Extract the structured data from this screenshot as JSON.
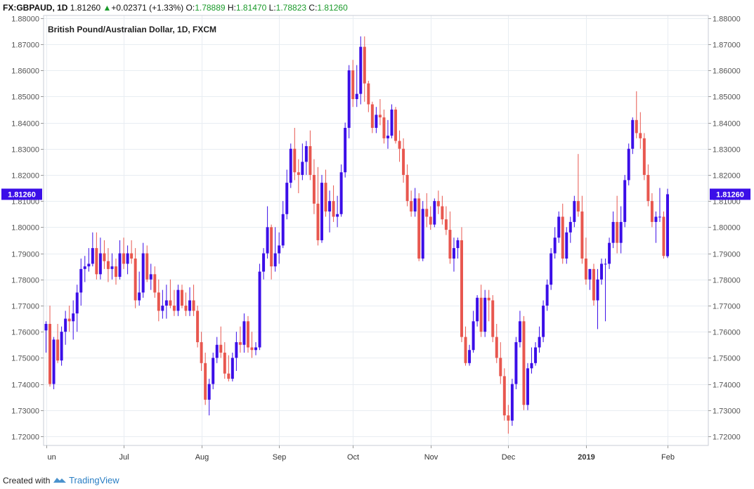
{
  "header": {
    "symbol": "FX:GBPAUD, 1D",
    "last": "1.81260",
    "arrow": "▲",
    "change": "+0.02371 (+1.33%)",
    "o_label": "O:",
    "o_value": "1.78889",
    "h_label": "H:",
    "h_value": "1.81470",
    "l_label": "L:",
    "l_value": "1.78823",
    "c_label": "C:",
    "c_value": "1.81260"
  },
  "footer": {
    "created_with": "Created with",
    "brand": "TradingView"
  },
  "colors": {
    "up": "#3b0ee8",
    "down": "#e8574f",
    "grid": "#e8edf2",
    "axis": "#555555",
    "price_badge": "#3b0ee8",
    "header_green": "#1a9a2a"
  },
  "chart_data": {
    "type": "candlestick",
    "title": "British Pound/Australian Dollar, 1D, FXCM",
    "ylim": [
      1.7165,
      1.881
    ],
    "y_ticks": [
      "1.72000",
      "1.73000",
      "1.74000",
      "1.75000",
      "1.76000",
      "1.77000",
      "1.78000",
      "1.79000",
      "1.80000",
      "1.81000",
      "1.82000",
      "1.83000",
      "1.84000",
      "1.85000",
      "1.86000",
      "1.87000",
      "1.88000"
    ],
    "last_price": "1.81260",
    "grid": true,
    "x_ticks": [
      {
        "label": "un",
        "index": 0,
        "bold": false
      },
      {
        "label": "Jul",
        "index": 20,
        "bold": false
      },
      {
        "label": "Aug",
        "index": 40,
        "bold": false
      },
      {
        "label": "Sep",
        "index": 60,
        "bold": false
      },
      {
        "label": "Oct",
        "index": 79,
        "bold": false
      },
      {
        "label": "Nov",
        "index": 99,
        "bold": false
      },
      {
        "label": "Dec",
        "index": 119,
        "bold": false
      },
      {
        "label": "2019",
        "index": 139,
        "bold": true
      },
      {
        "label": "Feb",
        "index": 160,
        "bold": false
      }
    ],
    "ohlc": [
      [
        1.7605,
        1.764,
        1.752,
        1.763
      ],
      [
        1.763,
        1.77,
        1.739,
        1.74
      ],
      [
        1.74,
        1.758,
        1.738,
        1.757
      ],
      [
        1.757,
        1.763,
        1.748,
        1.749
      ],
      [
        1.749,
        1.762,
        1.747,
        1.76
      ],
      [
        1.76,
        1.768,
        1.755,
        1.765
      ],
      [
        1.765,
        1.77,
        1.76,
        1.764
      ],
      [
        1.764,
        1.772,
        1.757,
        1.767
      ],
      [
        1.767,
        1.778,
        1.76,
        1.775
      ],
      [
        1.775,
        1.788,
        1.77,
        1.784
      ],
      [
        1.784,
        1.789,
        1.779,
        1.785
      ],
      [
        1.785,
        1.792,
        1.783,
        1.786
      ],
      [
        1.786,
        1.798,
        1.785,
        1.792
      ],
      [
        1.792,
        1.798,
        1.78,
        1.782
      ],
      [
        1.782,
        1.796,
        1.78,
        1.79
      ],
      [
        1.79,
        1.795,
        1.784,
        1.787
      ],
      [
        1.787,
        1.792,
        1.779,
        1.784
      ],
      [
        1.784,
        1.79,
        1.78,
        1.785
      ],
      [
        1.785,
        1.788,
        1.778,
        1.781
      ],
      [
        1.781,
        1.795,
        1.78,
        1.79
      ],
      [
        1.79,
        1.796,
        1.784,
        1.786
      ],
      [
        1.786,
        1.793,
        1.782,
        1.79
      ],
      [
        1.79,
        1.795,
        1.786,
        1.788
      ],
      [
        1.788,
        1.792,
        1.769,
        1.772
      ],
      [
        1.772,
        1.783,
        1.77,
        1.775
      ],
      [
        1.775,
        1.794,
        1.773,
        1.79
      ],
      [
        1.79,
        1.793,
        1.779,
        1.78
      ],
      [
        1.78,
        1.786,
        1.776,
        1.782
      ],
      [
        1.782,
        1.785,
        1.773,
        1.775
      ],
      [
        1.775,
        1.78,
        1.764,
        1.768
      ],
      [
        1.768,
        1.776,
        1.765,
        1.77
      ],
      [
        1.77,
        1.778,
        1.765,
        1.772
      ],
      [
        1.772,
        1.78,
        1.769,
        1.77
      ],
      [
        1.77,
        1.776,
        1.766,
        1.768
      ],
      [
        1.768,
        1.778,
        1.766,
        1.776
      ],
      [
        1.776,
        1.778,
        1.769,
        1.77
      ],
      [
        1.77,
        1.775,
        1.766,
        1.768
      ],
      [
        1.768,
        1.777,
        1.766,
        1.772
      ],
      [
        1.772,
        1.778,
        1.766,
        1.768
      ],
      [
        1.768,
        1.77,
        1.754,
        1.756
      ],
      [
        1.756,
        1.76,
        1.745,
        1.748
      ],
      [
        1.748,
        1.752,
        1.732,
        1.734
      ],
      [
        1.734,
        1.742,
        1.728,
        1.74
      ],
      [
        1.74,
        1.752,
        1.738,
        1.75
      ],
      [
        1.75,
        1.758,
        1.748,
        1.755
      ],
      [
        1.755,
        1.762,
        1.75,
        1.752
      ],
      [
        1.752,
        1.756,
        1.742,
        1.744
      ],
      [
        1.744,
        1.751,
        1.741,
        1.742
      ],
      [
        1.742,
        1.752,
        1.741,
        1.75
      ],
      [
        1.75,
        1.76,
        1.745,
        1.756
      ],
      [
        1.756,
        1.762,
        1.752,
        1.755
      ],
      [
        1.755,
        1.767,
        1.752,
        1.764
      ],
      [
        1.764,
        1.766,
        1.752,
        1.754
      ],
      [
        1.754,
        1.76,
        1.75,
        1.753
      ],
      [
        1.753,
        1.756,
        1.751,
        1.754
      ],
      [
        1.754,
        1.786,
        1.753,
        1.783
      ],
      [
        1.783,
        1.792,
        1.78,
        1.79
      ],
      [
        1.79,
        1.808,
        1.788,
        1.8
      ],
      [
        1.8,
        1.801,
        1.78,
        1.785
      ],
      [
        1.785,
        1.8,
        1.783,
        1.79
      ],
      [
        1.79,
        1.798,
        1.786,
        1.793
      ],
      [
        1.793,
        1.81,
        1.792,
        1.805
      ],
      [
        1.805,
        1.822,
        1.803,
        1.817
      ],
      [
        1.817,
        1.832,
        1.815,
        1.83
      ],
      [
        1.83,
        1.838,
        1.818,
        1.821
      ],
      [
        1.821,
        1.826,
        1.813,
        1.82
      ],
      [
        1.82,
        1.832,
        1.818,
        1.825
      ],
      [
        1.825,
        1.833,
        1.82,
        1.831
      ],
      [
        1.831,
        1.837,
        1.818,
        1.82
      ],
      [
        1.82,
        1.826,
        1.805,
        1.809
      ],
      [
        1.809,
        1.823,
        1.793,
        1.795
      ],
      [
        1.795,
        1.82,
        1.794,
        1.817
      ],
      [
        1.817,
        1.822,
        1.804,
        1.806
      ],
      [
        1.806,
        1.814,
        1.798,
        1.81
      ],
      [
        1.81,
        1.816,
        1.802,
        1.804
      ],
      [
        1.804,
        1.812,
        1.8,
        1.805
      ],
      [
        1.805,
        1.824,
        1.804,
        1.821
      ],
      [
        1.821,
        1.84,
        1.819,
        1.838
      ],
      [
        1.838,
        1.862,
        1.834,
        1.86
      ],
      [
        1.86,
        1.864,
        1.846,
        1.849
      ],
      [
        1.849,
        1.862,
        1.846,
        1.851
      ],
      [
        1.851,
        1.873,
        1.847,
        1.869
      ],
      [
        1.869,
        1.873,
        1.848,
        1.855
      ],
      [
        1.855,
        1.856,
        1.844,
        1.847
      ],
      [
        1.847,
        1.848,
        1.836,
        1.838
      ],
      [
        1.838,
        1.846,
        1.836,
        1.843
      ],
      [
        1.843,
        1.849,
        1.839,
        1.842
      ],
      [
        1.842,
        1.845,
        1.832,
        1.834
      ],
      [
        1.834,
        1.841,
        1.83,
        1.835
      ],
      [
        1.835,
        1.847,
        1.834,
        1.845
      ],
      [
        1.845,
        1.846,
        1.832,
        1.833
      ],
      [
        1.833,
        1.837,
        1.825,
        1.83
      ],
      [
        1.83,
        1.834,
        1.817,
        1.82
      ],
      [
        1.82,
        1.824,
        1.808,
        1.81
      ],
      [
        1.81,
        1.814,
        1.804,
        1.806
      ],
      [
        1.806,
        1.815,
        1.804,
        1.811
      ],
      [
        1.811,
        1.813,
        1.787,
        1.788
      ],
      [
        1.788,
        1.81,
        1.787,
        1.807
      ],
      [
        1.807,
        1.813,
        1.8,
        1.804
      ],
      [
        1.804,
        1.808,
        1.799,
        1.801
      ],
      [
        1.801,
        1.811,
        1.8,
        1.81
      ],
      [
        1.81,
        1.814,
        1.805,
        1.808
      ],
      [
        1.808,
        1.812,
        1.801,
        1.803
      ],
      [
        1.803,
        1.808,
        1.797,
        1.799
      ],
      [
        1.799,
        1.806,
        1.786,
        1.788
      ],
      [
        1.788,
        1.796,
        1.783,
        1.792
      ],
      [
        1.792,
        1.796,
        1.788,
        1.795
      ],
      [
        1.795,
        1.8,
        1.756,
        1.758
      ],
      [
        1.758,
        1.762,
        1.747,
        1.748
      ],
      [
        1.748,
        1.755,
        1.747,
        1.753
      ],
      [
        1.753,
        1.768,
        1.752,
        1.764
      ],
      [
        1.764,
        1.774,
        1.762,
        1.773
      ],
      [
        1.773,
        1.778,
        1.758,
        1.76
      ],
      [
        1.76,
        1.776,
        1.758,
        1.773
      ],
      [
        1.773,
        1.776,
        1.764,
        1.772
      ],
      [
        1.772,
        1.774,
        1.756,
        1.758
      ],
      [
        1.758,
        1.763,
        1.748,
        1.75
      ],
      [
        1.75,
        1.756,
        1.74,
        1.743
      ],
      [
        1.743,
        1.746,
        1.726,
        1.728
      ],
      [
        1.728,
        1.732,
        1.721,
        1.726
      ],
      [
        1.726,
        1.742,
        1.724,
        1.74
      ],
      [
        1.74,
        1.758,
        1.738,
        1.756
      ],
      [
        1.756,
        1.768,
        1.754,
        1.764
      ],
      [
        1.764,
        1.766,
        1.73,
        1.732
      ],
      [
        1.732,
        1.748,
        1.73,
        1.746
      ],
      [
        1.746,
        1.754,
        1.744,
        1.748
      ],
      [
        1.748,
        1.756,
        1.747,
        1.754
      ],
      [
        1.754,
        1.762,
        1.752,
        1.758
      ],
      [
        1.758,
        1.772,
        1.756,
        1.77
      ],
      [
        1.77,
        1.78,
        1.768,
        1.778
      ],
      [
        1.778,
        1.792,
        1.776,
        1.79
      ],
      [
        1.79,
        1.8,
        1.788,
        1.796
      ],
      [
        1.796,
        1.806,
        1.794,
        1.804
      ],
      [
        1.804,
        1.809,
        1.786,
        1.788
      ],
      [
        1.788,
        1.8,
        1.786,
        1.798
      ],
      [
        1.798,
        1.804,
        1.794,
        1.802
      ],
      [
        1.802,
        1.812,
        1.8,
        1.81
      ],
      [
        1.81,
        1.828,
        1.804,
        1.806
      ],
      [
        1.806,
        1.812,
        1.786,
        1.788
      ],
      [
        1.788,
        1.796,
        1.778,
        1.78
      ],
      [
        1.78,
        1.784,
        1.776,
        1.784
      ],
      [
        1.784,
        1.786,
        1.77,
        1.772
      ],
      [
        1.772,
        1.784,
        1.761,
        1.78
      ],
      [
        1.78,
        1.788,
        1.778,
        1.786
      ],
      [
        1.786,
        1.788,
        1.764,
        1.786
      ],
      [
        1.786,
        1.796,
        1.784,
        1.794
      ],
      [
        1.794,
        1.806,
        1.792,
        1.802
      ],
      [
        1.802,
        1.812,
        1.79,
        1.794
      ],
      [
        1.794,
        1.808,
        1.79,
        1.802
      ],
      [
        1.802,
        1.82,
        1.8,
        1.818
      ],
      [
        1.818,
        1.832,
        1.816,
        1.83
      ],
      [
        1.83,
        1.842,
        1.828,
        1.841
      ],
      [
        1.841,
        1.852,
        1.834,
        1.836
      ],
      [
        1.836,
        1.844,
        1.83,
        1.834
      ],
      [
        1.834,
        1.836,
        1.818,
        1.82
      ],
      [
        1.82,
        1.824,
        1.808,
        1.81
      ],
      [
        1.81,
        1.813,
        1.8,
        1.802
      ],
      [
        1.802,
        1.806,
        1.794,
        1.804
      ],
      [
        1.804,
        1.815,
        1.802,
        1.804
      ],
      [
        1.804,
        1.806,
        1.788,
        1.789
      ],
      [
        1.7889,
        1.8147,
        1.7882,
        1.8126
      ]
    ]
  }
}
